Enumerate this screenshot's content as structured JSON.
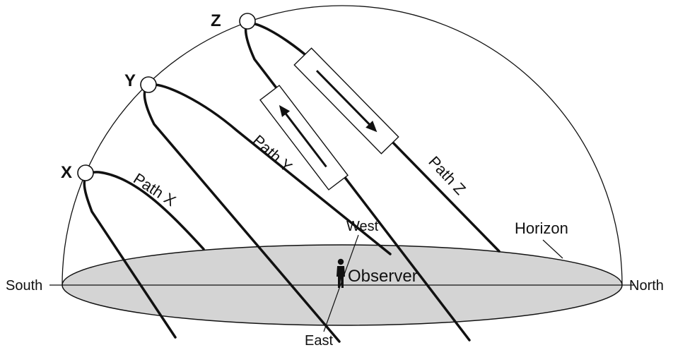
{
  "points": {
    "x": "X",
    "y": "Y",
    "z": "Z"
  },
  "paths": {
    "x": "Path X",
    "y": "Path Y",
    "z": "Path Z"
  },
  "directions": {
    "south": "South",
    "north": "North",
    "east": "East",
    "west": "West"
  },
  "labels": {
    "horizon": "Horizon",
    "observer": "Observer"
  },
  "colors": {
    "horizon_fill": "#d4d4d4",
    "stroke": "#111111"
  }
}
